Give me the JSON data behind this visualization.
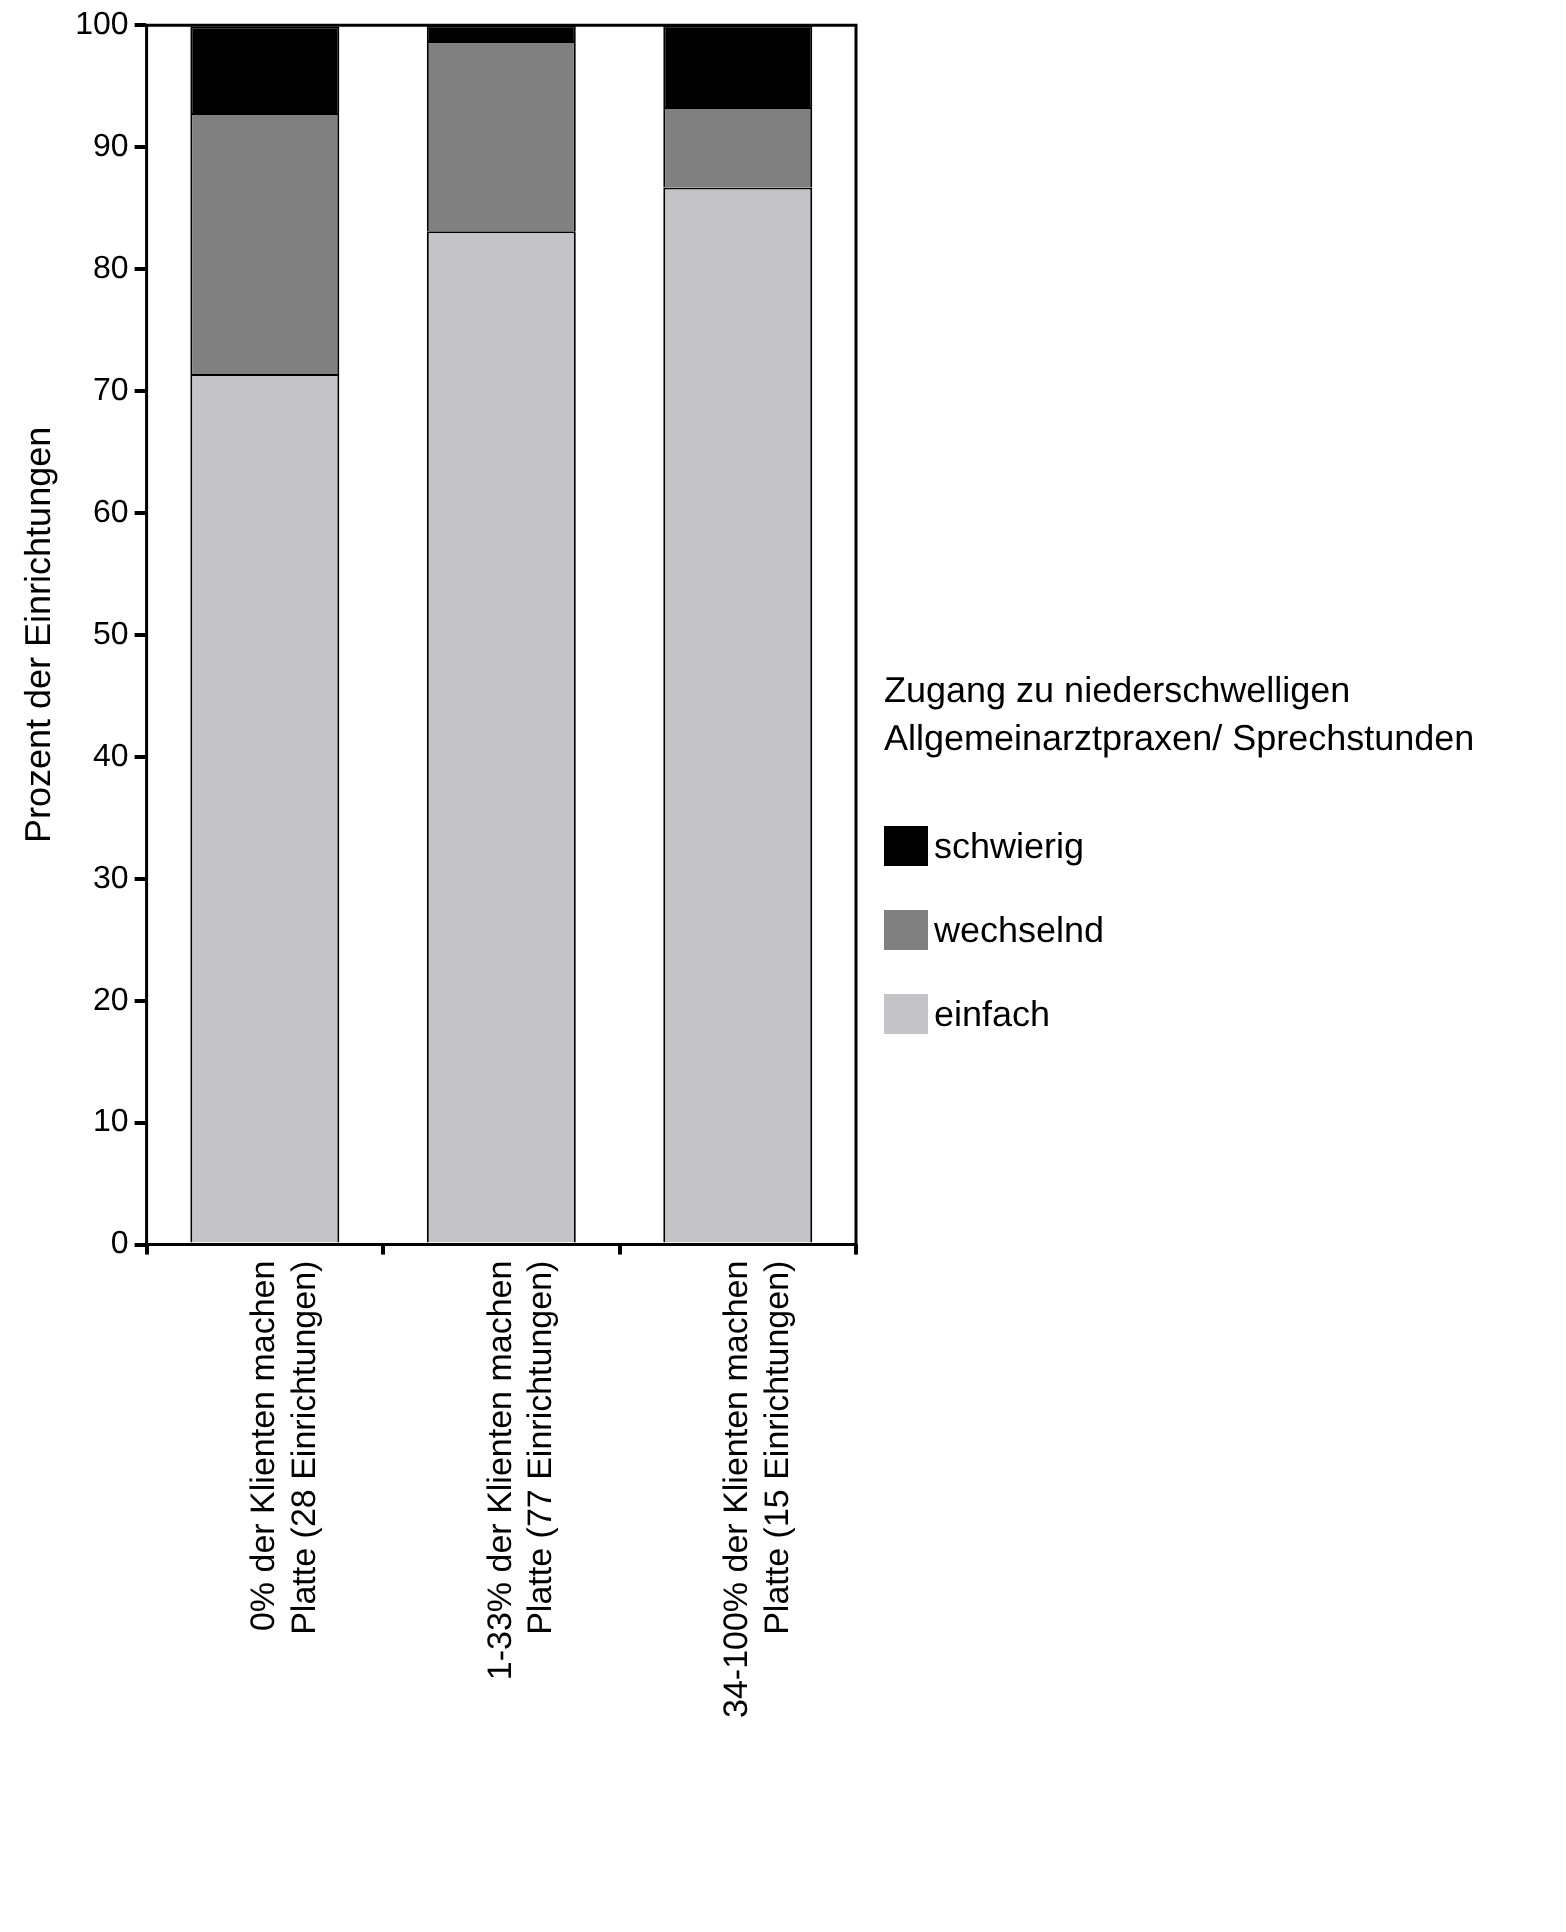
{
  "chart_data": {
    "type": "bar",
    "stacked": true,
    "ylabel": "Prozent der Einrichtungen",
    "legend_title": "Zugang zu niederschwelligen Allgemeinarztpraxen/ Sprechstunden",
    "legend": "right",
    "categories": [
      "0% der Klienten machen Platte (28 Einrichtungen)",
      "1-33% der Klienten machen Platte (77 Einrichtungen)",
      "34-100% der Klienten machen Platte (15 Einrichtungen)"
    ],
    "series": [
      {
        "name": "einfach",
        "color": "#c4c3c8",
        "values": [
          71.4,
          83.1,
          86.7
        ]
      },
      {
        "name": "wechselnd",
        "color": "#808080",
        "values": [
          21.4,
          15.6,
          6.6
        ]
      },
      {
        "name": "schwierig",
        "color": "#000000",
        "values": [
          7.1,
          1.3,
          6.7
        ]
      }
    ],
    "ylim": [
      0,
      100
    ],
    "yticks": [
      0,
      10,
      20,
      30,
      40,
      50,
      60,
      70,
      80,
      90,
      100
    ],
    "grid": false
  }
}
